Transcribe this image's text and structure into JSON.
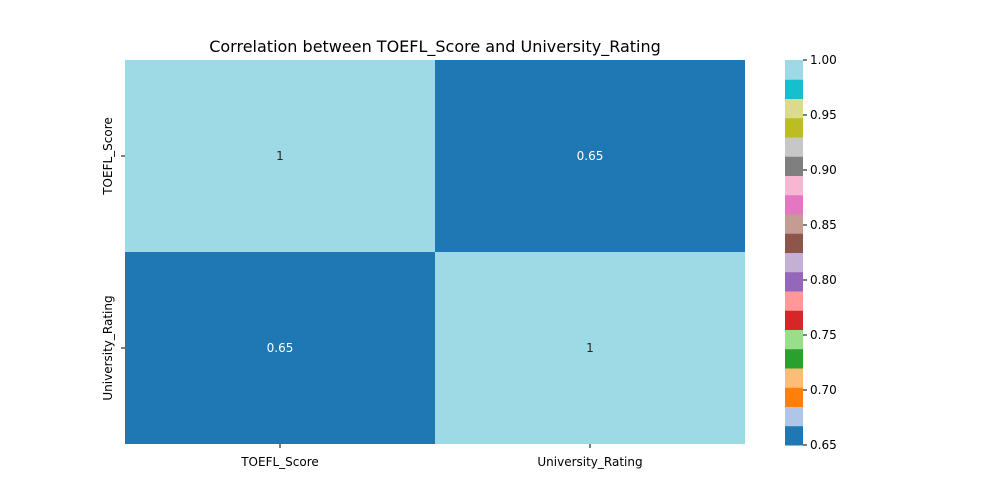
{
  "chart_data": {
    "type": "heatmap",
    "title": "Correlation between TOEFL_Score and University_Rating",
    "x_labels": [
      "TOEFL_Score",
      "University_Rating"
    ],
    "y_labels": [
      "TOEFL_Score",
      "University_Rating"
    ],
    "values": [
      [
        1.0,
        0.65
      ],
      [
        0.65,
        1.0
      ]
    ],
    "cell_labels": [
      [
        "1",
        "0.65"
      ],
      [
        "0.65",
        "1"
      ]
    ],
    "colorbar": {
      "range": [
        0.65,
        1.0
      ],
      "tick_values": [
        0.65,
        0.7,
        0.75,
        0.8,
        0.85,
        0.9,
        0.95,
        1.0
      ],
      "tick_labels": [
        "0.65",
        "0.70",
        "0.75",
        "0.80",
        "0.85",
        "0.90",
        "0.95",
        "1.00"
      ],
      "colormap": "tab20",
      "colors": [
        "#1f77b4",
        "#aec7e8",
        "#ff7f0e",
        "#ffbb78",
        "#2ca02c",
        "#98df8a",
        "#d62728",
        "#ff9896",
        "#9467bd",
        "#c5b0d5",
        "#8c564b",
        "#c49c94",
        "#e377c2",
        "#f7b6d2",
        "#7f7f7f",
        "#c7c7c7",
        "#bcbd22",
        "#dbdb8d",
        "#17becf",
        "#9edae5"
      ]
    }
  }
}
